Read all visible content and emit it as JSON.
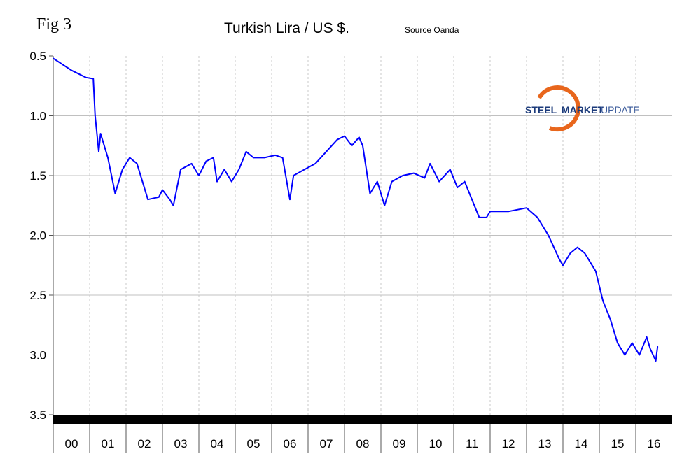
{
  "chart_data": {
    "type": "line",
    "figure_label": "Fig 3",
    "title": "Turkish Lira / US $.",
    "source": "Source Oanda",
    "logo_text": {
      "part1": "STEEL",
      "part2": "MARKET",
      "part3": "UPDATE"
    },
    "y_axis": {
      "range": [
        0.5,
        3.5
      ],
      "inverted": true,
      "ticks": [
        "0.5",
        "1.0",
        "1.5",
        "2.0",
        "2.5",
        "3.0",
        "3.5"
      ]
    },
    "x_axis": {
      "range": [
        2000,
        2017
      ],
      "ticks": [
        "00",
        "01",
        "02",
        "03",
        "04",
        "05",
        "06",
        "07",
        "08",
        "09",
        "10",
        "11",
        "12",
        "13",
        "14",
        "15",
        "16"
      ]
    },
    "grid": true,
    "series": [
      {
        "color": "#0000ff",
        "x": [
          2000.0,
          2000.5,
          2000.9,
          2001.1,
          2001.15,
          2001.25,
          2001.3,
          2001.5,
          2001.7,
          2001.9,
          2002.1,
          2002.3,
          2002.5,
          2002.6,
          2002.9,
          2003.0,
          2003.2,
          2003.3,
          2003.5,
          2003.8,
          2004.0,
          2004.2,
          2004.4,
          2004.5,
          2004.7,
          2004.9,
          2005.1,
          2005.3,
          2005.5,
          2005.8,
          2006.1,
          2006.3,
          2006.5,
          2006.6,
          2006.9,
          2007.2,
          2007.5,
          2007.8,
          2008.0,
          2008.2,
          2008.4,
          2008.5,
          2008.7,
          2008.9,
          2009.1,
          2009.3,
          2009.6,
          2009.9,
          2010.2,
          2010.35,
          2010.6,
          2010.9,
          2011.1,
          2011.3,
          2011.5,
          2011.7,
          2011.9,
          2012.0,
          2012.5,
          2013.0,
          2013.3,
          2013.6,
          2013.9,
          2014.0,
          2014.2,
          2014.4,
          2014.6,
          2014.9,
          2015.1,
          2015.3,
          2015.5,
          2015.7,
          2015.9,
          2016.1,
          2016.3,
          2016.4,
          2016.55,
          2016.6
        ],
        "y": [
          0.52,
          0.62,
          0.68,
          0.69,
          1.0,
          1.3,
          1.15,
          1.35,
          1.65,
          1.45,
          1.35,
          1.4,
          1.6,
          1.7,
          1.68,
          1.62,
          1.7,
          1.75,
          1.45,
          1.4,
          1.5,
          1.38,
          1.35,
          1.55,
          1.45,
          1.55,
          1.45,
          1.3,
          1.35,
          1.35,
          1.33,
          1.35,
          1.7,
          1.5,
          1.45,
          1.4,
          1.3,
          1.2,
          1.17,
          1.25,
          1.18,
          1.25,
          1.65,
          1.55,
          1.75,
          1.55,
          1.5,
          1.48,
          1.52,
          1.4,
          1.55,
          1.45,
          1.6,
          1.55,
          1.7,
          1.85,
          1.85,
          1.8,
          1.8,
          1.77,
          1.85,
          2.0,
          2.2,
          2.25,
          2.15,
          2.1,
          2.15,
          2.3,
          2.55,
          2.7,
          2.9,
          3.0,
          2.9,
          3.0,
          2.85,
          2.95,
          3.05,
          2.93
        ]
      }
    ]
  }
}
